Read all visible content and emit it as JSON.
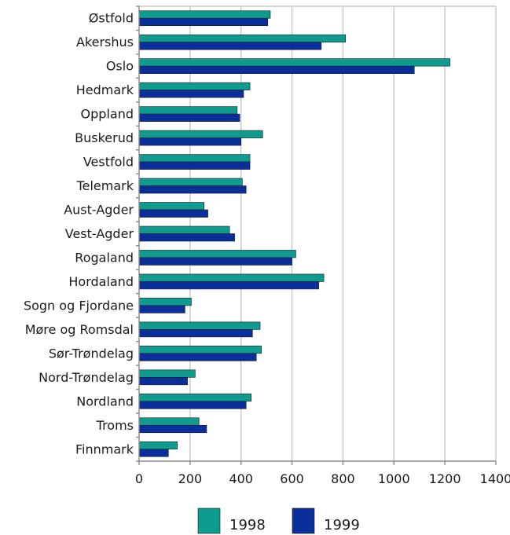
{
  "chart_data": {
    "type": "bar",
    "orientation": "horizontal",
    "title": "",
    "xlabel": "",
    "ylabel": "",
    "categories": [
      "Østfold",
      "Akershus",
      "Oslo",
      "Hedmark",
      "Oppland",
      "Buskerud",
      "Vestfold",
      "Telemark",
      "Aust-Agder",
      "Vest-Agder",
      "Rogaland",
      "Hordaland",
      "Sogn og Fjordane",
      "Møre og Romsdal",
      "Sør-Trøndelag",
      "Nord-Trøndelag",
      "Nordland",
      "Troms",
      "Finnmark"
    ],
    "series": [
      {
        "name": "1998",
        "color": "#0f9b8e",
        "values": [
          515,
          810,
          1220,
          435,
          385,
          485,
          435,
          405,
          255,
          355,
          615,
          725,
          205,
          475,
          480,
          220,
          440,
          235,
          150
        ]
      },
      {
        "name": "1999",
        "color": "#0a2f9a",
        "values": [
          505,
          715,
          1080,
          410,
          395,
          400,
          435,
          420,
          270,
          375,
          600,
          705,
          180,
          445,
          460,
          190,
          420,
          265,
          115
        ]
      }
    ],
    "xlim": [
      0,
      1400
    ],
    "xticks": [
      0,
      200,
      400,
      600,
      800,
      1000,
      1200,
      1400
    ],
    "xtick_labels": [
      "0",
      "200",
      "400",
      "600",
      "800",
      "1000",
      "1200",
      "1400"
    ],
    "grid": true,
    "legend_position": "bottom-center"
  }
}
